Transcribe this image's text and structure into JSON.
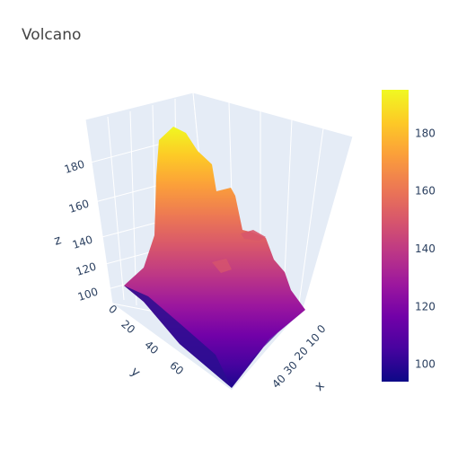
{
  "chart_data": {
    "type": "surface",
    "title": "Volcano",
    "axes": {
      "x": {
        "title": "x",
        "ticks": [
          0,
          10,
          20,
          30,
          40
        ]
      },
      "y": {
        "title": "y",
        "ticks": [
          0,
          20,
          40,
          60
        ]
      },
      "z": {
        "title": "z",
        "ticks": [
          100,
          120,
          140,
          160,
          180
        ]
      }
    },
    "colorbar": {
      "colorscale": "plasma",
      "range": [
        94,
        195
      ],
      "ticks": [
        100,
        120,
        140,
        160,
        180
      ],
      "colors": [
        "#0d0887",
        "#46039f",
        "#7201a8",
        "#9c179e",
        "#bd3786",
        "#d8576b",
        "#ed7953",
        "#fb9f3a",
        "#fdca26",
        "#f0f921"
      ]
    }
  }
}
